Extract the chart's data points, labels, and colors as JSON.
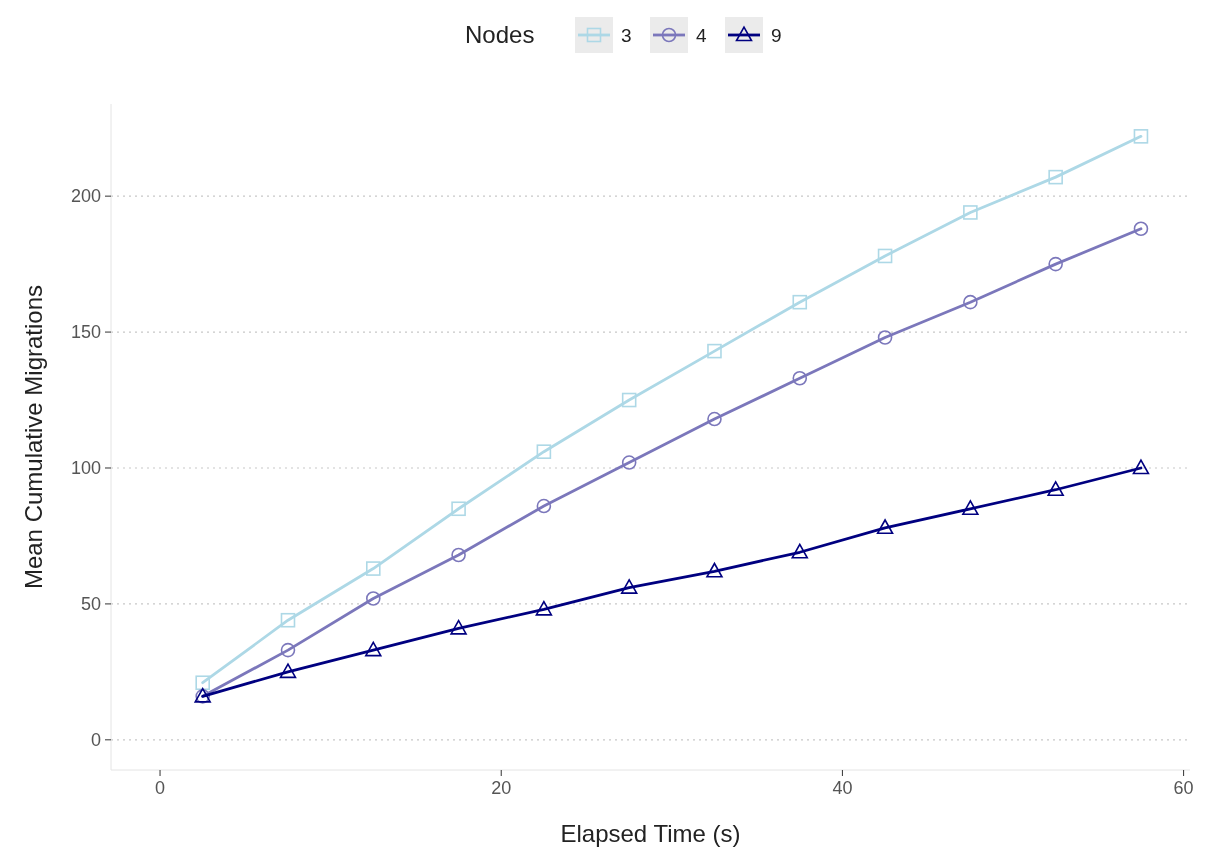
{
  "chart_data": {
    "type": "line",
    "xlabel": "Elapsed Time (s)",
    "ylabel": "Mean Cumulative Migrations",
    "legend_title": "Nodes",
    "legend": "top",
    "x": [
      2.5,
      7.5,
      12.5,
      17.5,
      22.5,
      27.5,
      32.5,
      37.5,
      42.5,
      47.5,
      52.5,
      57.5
    ],
    "series": [
      {
        "name": "3",
        "color": "#add8e6",
        "marker": "square",
        "values": [
          21,
          44,
          63,
          85,
          106,
          125,
          143,
          161,
          178,
          194,
          207,
          222
        ]
      },
      {
        "name": "4",
        "color": "#7b77bb",
        "marker": "circle",
        "values": [
          16,
          33,
          52,
          68,
          86,
          102,
          118,
          133,
          148,
          161,
          175,
          188
        ]
      },
      {
        "name": "9",
        "color": "#000080",
        "marker": "triangle",
        "values": [
          16,
          25,
          33,
          41,
          48,
          56,
          62,
          69,
          78,
          85,
          92,
          100
        ]
      }
    ],
    "xlim": [
      -2.875,
      60.375
    ],
    "ylim": [
      -11.1,
      233.9
    ],
    "xticks": [
      0,
      20,
      40,
      60
    ],
    "yticks": [
      0,
      50,
      100,
      150,
      200
    ],
    "grid": "y",
    "line_style": "solid"
  }
}
